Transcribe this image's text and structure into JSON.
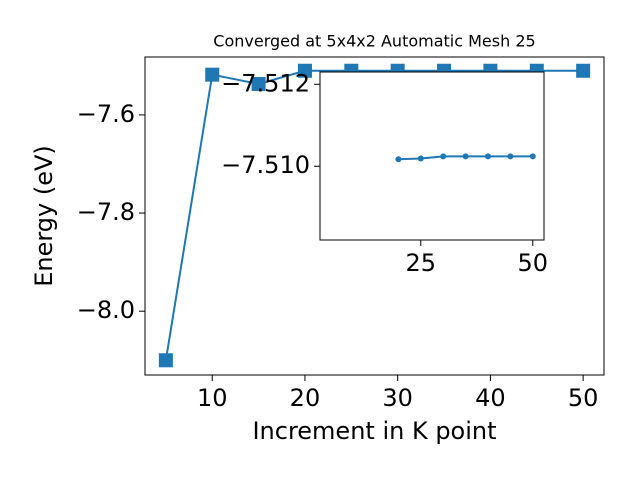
{
  "chart_data": [
    {
      "type": "line",
      "title": "Converged at 5x4x2 Automatic Mesh 25",
      "x_label": "Increment in K point",
      "y_label": "Energy (eV)",
      "x": [
        5,
        10,
        15,
        20,
        25,
        30,
        35,
        40,
        45,
        50
      ],
      "series": [
        {
          "name": "Energy",
          "color": "#1f77b4",
          "values": [
            -8.1,
            -7.518,
            -7.537,
            -7.51,
            -7.51,
            -7.51,
            -7.51,
            -7.51,
            -7.51,
            -7.51
          ]
        }
      ],
      "marker": "square",
      "xlim": [
        2.75,
        52.25
      ],
      "xticks": [
        10,
        20,
        30,
        40,
        50
      ],
      "ylim": [
        -8.13,
        -7.482
      ],
      "yticks": [
        {
          "value": -7.6,
          "label": "−7.6"
        },
        {
          "value": -7.8,
          "label": "−7.8"
        },
        {
          "value": -8.0,
          "label": "−8.0"
        }
      ]
    },
    {
      "type": "line",
      "x": [
        20,
        25,
        30,
        35,
        40,
        45,
        50
      ],
      "series": [
        {
          "name": "Energy",
          "color": "#1f77b4",
          "values": [
            -7.51017,
            -7.51019,
            -7.51024,
            -7.51024,
            -7.51024,
            -7.51024,
            -7.51024
          ]
        }
      ],
      "marker": "circle",
      "xlim": [
        2.5,
        52.5
      ],
      "xticks": [
        25,
        50
      ],
      "ylim": [
        -7.5123,
        -7.5082
      ],
      "y_inverted": true,
      "yticks": [
        {
          "value": -7.512,
          "label": "−7.512"
        },
        {
          "value": -7.51,
          "label": "−7.510"
        }
      ]
    }
  ]
}
